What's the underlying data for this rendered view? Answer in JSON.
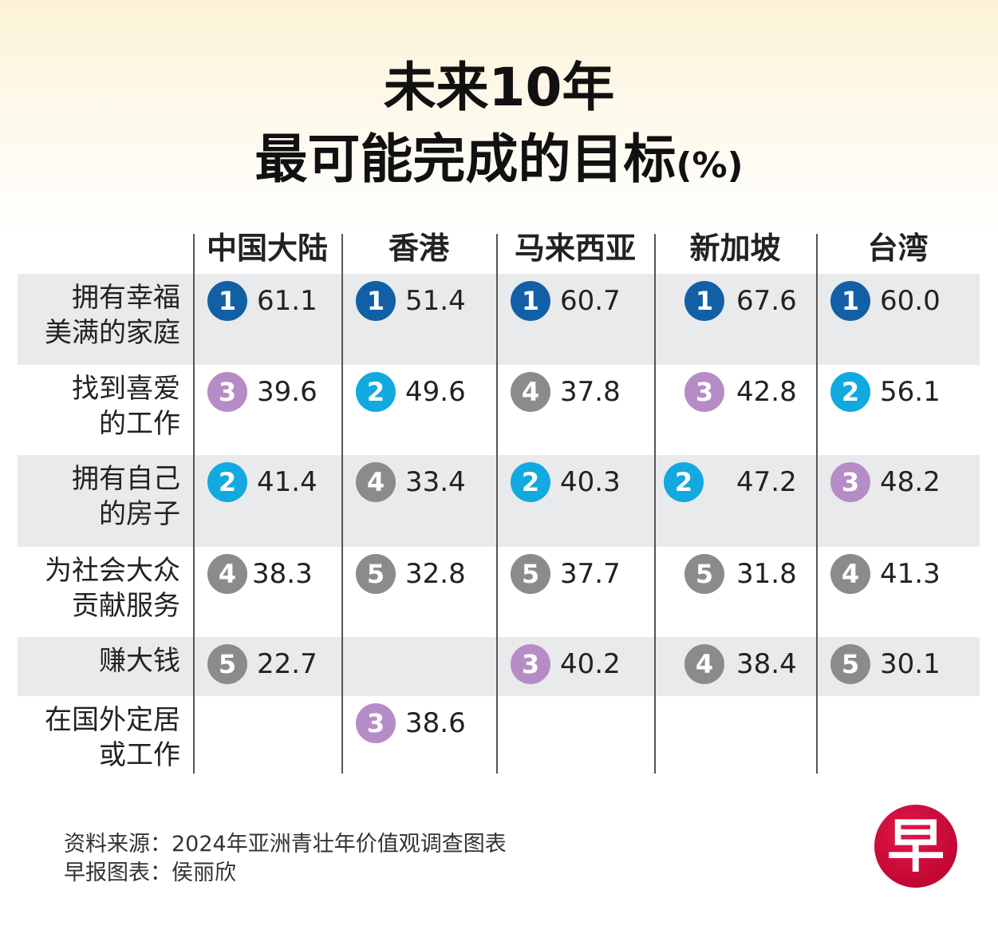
{
  "title_line1": "未来10年",
  "title_line2": "最可能完成的目标",
  "title_unit": "(%)",
  "colors": {
    "rank1": "#1160a6",
    "rank2": "#12a9e0",
    "rank3": "#b68cc6",
    "rank4": "#8a8b8c",
    "rank5": "#8a8b8c",
    "row_shade": "#e9eaeb"
  },
  "chart_data": {
    "type": "table",
    "columns": [
      "中国大陆",
      "香港",
      "马来西亚",
      "新加坡",
      "台湾"
    ],
    "rows": [
      {
        "label_lines": [
          "拥有幸福",
          "美满的家庭"
        ],
        "cells": [
          {
            "rank": 1,
            "value": "61.1"
          },
          {
            "rank": 1,
            "value": "51.4"
          },
          {
            "rank": 1,
            "value": "60.7"
          },
          {
            "rank": 1,
            "value": "67.6"
          },
          {
            "rank": 1,
            "value": "60.0"
          }
        ]
      },
      {
        "label_lines": [
          "找到喜爱",
          "的工作"
        ],
        "cells": [
          {
            "rank": 3,
            "value": "39.6"
          },
          {
            "rank": 2,
            "value": "49.6"
          },
          {
            "rank": 4,
            "value": "37.8"
          },
          {
            "rank": 3,
            "value": "42.8"
          },
          {
            "rank": 2,
            "value": "56.1"
          }
        ]
      },
      {
        "label_lines": [
          "拥有自己",
          "的房子"
        ],
        "cells": [
          {
            "rank": 2,
            "value": "41.4"
          },
          {
            "rank": 4,
            "value": "33.4"
          },
          {
            "rank": 2,
            "value": "40.3"
          },
          {
            "rank": 2,
            "value": "47.2"
          },
          {
            "rank": 3,
            "value": "48.2"
          }
        ]
      },
      {
        "label_lines": [
          "为社会大众",
          "贡献服务"
        ],
        "cells": [
          {
            "rank": 4,
            "value": "38.3"
          },
          {
            "rank": 5,
            "value": "32.8"
          },
          {
            "rank": 5,
            "value": "37.7"
          },
          {
            "rank": 5,
            "value": "31.8"
          },
          {
            "rank": 4,
            "value": "41.3"
          }
        ]
      },
      {
        "label_lines": [
          "赚大钱"
        ],
        "cells": [
          {
            "rank": 5,
            "value": "22.7"
          },
          null,
          {
            "rank": 3,
            "value": "40.2"
          },
          {
            "rank": 4,
            "value": "38.4"
          },
          {
            "rank": 5,
            "value": "30.1"
          }
        ]
      },
      {
        "label_lines": [
          "在国外定居",
          "或工作"
        ],
        "cells": [
          null,
          {
            "rank": 3,
            "value": "38.6"
          },
          null,
          null,
          null
        ]
      }
    ]
  },
  "source_line1": "资料来源：2024年亚洲青壮年价值观调查图表",
  "source_line2": "早报图表：侯丽欣",
  "logo_text": "早"
}
